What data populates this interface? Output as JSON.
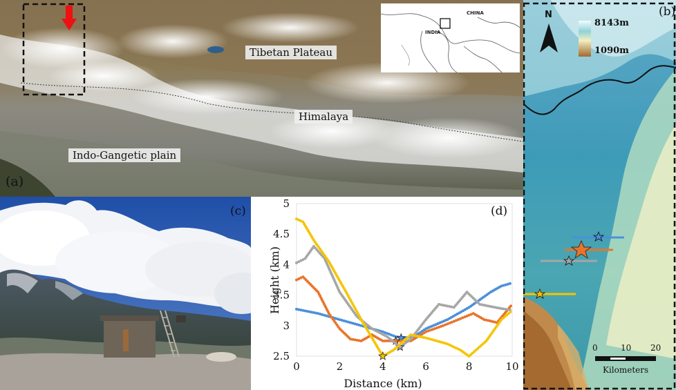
{
  "panel_a": {
    "label": "(a)",
    "places": {
      "tibetan_plateau": "Tibetan Plateau",
      "himalaya": "Himalaya",
      "indo_gangetic": "Indo-Gangetic plain"
    },
    "inset": {
      "china": "CHINA",
      "india": "INDIA"
    }
  },
  "panel_b": {
    "label": "(b)",
    "north": "N",
    "legend_max": "8143m",
    "legend_min": "1090m",
    "scale_ticks": [
      "0",
      "10",
      "20"
    ],
    "scale_unit": "Kilometers",
    "colors": {
      "blue": "#4a90d9",
      "orange": "#e8742a",
      "gray": "#a6a6a6",
      "gold": "#f5c400"
    }
  },
  "panel_c": {
    "label": "(c)"
  },
  "panel_d": {
    "label": "(d)"
  },
  "chart_data": {
    "type": "line",
    "xlabel": "Distance (km)",
    "ylabel": "Height (km)",
    "xlim": [
      0,
      10
    ],
    "ylim": [
      2.5,
      5
    ],
    "xticks": [
      "0",
      "2",
      "4",
      "6",
      "8",
      "10"
    ],
    "yticks": [
      "2.5",
      "3",
      "3.5",
      "4",
      "4.5",
      "5"
    ],
    "series": [
      {
        "color": "#4a90d9",
        "star": [
          4.85,
          2.8
        ],
        "points": [
          [
            0,
            3.27
          ],
          [
            1,
            3.2
          ],
          [
            2,
            3.1
          ],
          [
            3,
            3.0
          ],
          [
            4,
            2.9
          ],
          [
            4.6,
            2.82
          ],
          [
            5,
            2.8
          ],
          [
            5.5,
            2.83
          ],
          [
            6,
            2.95
          ],
          [
            7,
            3.1
          ],
          [
            8,
            3.3
          ],
          [
            9,
            3.55
          ],
          [
            9.5,
            3.65
          ],
          [
            10,
            3.7
          ]
        ]
      },
      {
        "color": "#e8742a",
        "star": [
          4.6,
          2.75
        ],
        "points": [
          [
            0,
            3.75
          ],
          [
            0.3,
            3.8
          ],
          [
            1,
            3.55
          ],
          [
            1.5,
            3.2
          ],
          [
            2,
            2.95
          ],
          [
            2.5,
            2.78
          ],
          [
            3,
            2.75
          ],
          [
            3.5,
            2.85
          ],
          [
            4,
            2.75
          ],
          [
            4.6,
            2.75
          ],
          [
            5.3,
            2.75
          ],
          [
            6,
            2.9
          ],
          [
            6.8,
            3.0
          ],
          [
            7.5,
            3.1
          ],
          [
            8.2,
            3.2
          ],
          [
            8.7,
            3.1
          ],
          [
            9.3,
            3.05
          ],
          [
            10,
            3.35
          ]
        ]
      },
      {
        "color": "#a6a6a6",
        "star": [
          4.8,
          2.65
        ],
        "points": [
          [
            0,
            4.03
          ],
          [
            0.4,
            4.1
          ],
          [
            0.8,
            4.3
          ],
          [
            1.3,
            4.1
          ],
          [
            2,
            3.55
          ],
          [
            2.8,
            3.15
          ],
          [
            3.5,
            2.95
          ],
          [
            4.2,
            2.82
          ],
          [
            4.8,
            2.65
          ],
          [
            5.3,
            2.78
          ],
          [
            6,
            3.1
          ],
          [
            6.6,
            3.35
          ],
          [
            7.3,
            3.3
          ],
          [
            7.9,
            3.55
          ],
          [
            8.5,
            3.35
          ],
          [
            9.2,
            3.3
          ],
          [
            10,
            3.25
          ]
        ]
      },
      {
        "color": "#f5c400",
        "star": [
          4.0,
          2.5
        ],
        "points": [
          [
            0,
            4.75
          ],
          [
            0.3,
            4.7
          ],
          [
            0.8,
            4.4
          ],
          [
            1.5,
            4.05
          ],
          [
            2.3,
            3.55
          ],
          [
            3,
            3.1
          ],
          [
            3.5,
            2.8
          ],
          [
            4,
            2.5
          ],
          [
            4.5,
            2.6
          ],
          [
            5.3,
            2.85
          ],
          [
            6,
            2.8
          ],
          [
            7,
            2.7
          ],
          [
            7.6,
            2.6
          ],
          [
            8,
            2.5
          ],
          [
            8.8,
            2.75
          ],
          [
            9.5,
            3.1
          ],
          [
            10,
            3.25
          ]
        ]
      }
    ]
  }
}
